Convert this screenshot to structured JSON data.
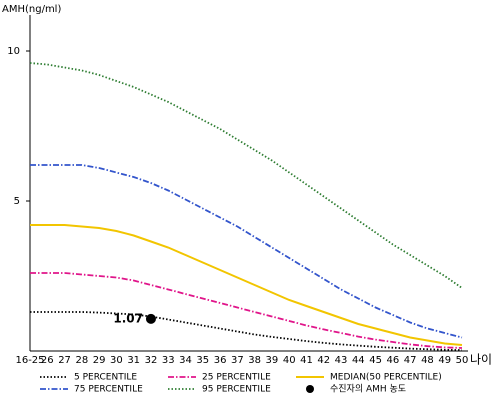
{
  "chart_data": {
    "type": "line",
    "y_label": "AMH(ng/ml)",
    "x_label": "나이",
    "categories": [
      "16-25",
      "26",
      "27",
      "28",
      "29",
      "30",
      "31",
      "32",
      "33",
      "34",
      "35",
      "36",
      "37",
      "38",
      "39",
      "40",
      "41",
      "42",
      "43",
      "44",
      "45",
      "46",
      "47",
      "48",
      "49",
      "50"
    ],
    "ylim": [
      0,
      11.2
    ],
    "yticks": [
      5,
      10
    ],
    "series": [
      {
        "name": "5 PERCENTILE",
        "color": "#000000",
        "style": "dotted",
        "values": [
          1.3,
          1.3,
          1.3,
          1.3,
          1.28,
          1.25,
          1.22,
          1.15,
          1.05,
          0.95,
          0.85,
          0.75,
          0.65,
          0.55,
          0.47,
          0.4,
          0.33,
          0.27,
          0.22,
          0.18,
          0.14,
          0.11,
          0.08,
          0.06,
          0.04,
          0.03
        ]
      },
      {
        "name": "25 PERCENTILE",
        "color": "#e0158a",
        "style": "dashdot",
        "values": [
          2.6,
          2.6,
          2.6,
          2.55,
          2.5,
          2.45,
          2.35,
          2.2,
          2.05,
          1.9,
          1.75,
          1.6,
          1.45,
          1.3,
          1.15,
          1.0,
          0.85,
          0.72,
          0.6,
          0.48,
          0.38,
          0.3,
          0.22,
          0.16,
          0.12,
          0.1
        ]
      },
      {
        "name": "MEDIAN(50 PERCENTILE)",
        "color": "#f2c500",
        "style": "solid",
        "values": [
          4.2,
          4.2,
          4.2,
          4.15,
          4.1,
          4.0,
          3.85,
          3.65,
          3.45,
          3.2,
          2.95,
          2.7,
          2.45,
          2.2,
          1.95,
          1.7,
          1.5,
          1.3,
          1.1,
          0.9,
          0.75,
          0.6,
          0.45,
          0.35,
          0.25,
          0.2
        ]
      },
      {
        "name": "75 PERCENTILE",
        "color": "#3355cc",
        "style": "dashdot",
        "values": [
          6.2,
          6.2,
          6.2,
          6.2,
          6.1,
          5.95,
          5.8,
          5.6,
          5.35,
          5.05,
          4.75,
          4.45,
          4.15,
          3.8,
          3.45,
          3.1,
          2.75,
          2.4,
          2.05,
          1.75,
          1.45,
          1.2,
          0.95,
          0.75,
          0.6,
          0.45
        ]
      },
      {
        "name": "95 PERCENTILE",
        "color": "#2e7d32",
        "style": "dotted",
        "values": [
          9.6,
          9.55,
          9.45,
          9.35,
          9.2,
          9.0,
          8.8,
          8.55,
          8.3,
          8.0,
          7.7,
          7.4,
          7.05,
          6.7,
          6.35,
          5.95,
          5.55,
          5.15,
          4.75,
          4.35,
          3.95,
          3.55,
          3.2,
          2.85,
          2.5,
          2.1
        ]
      }
    ],
    "marker": {
      "name": "수진자의 AMH 농도",
      "x": "32",
      "value": 1.07,
      "color": "#000000"
    }
  }
}
